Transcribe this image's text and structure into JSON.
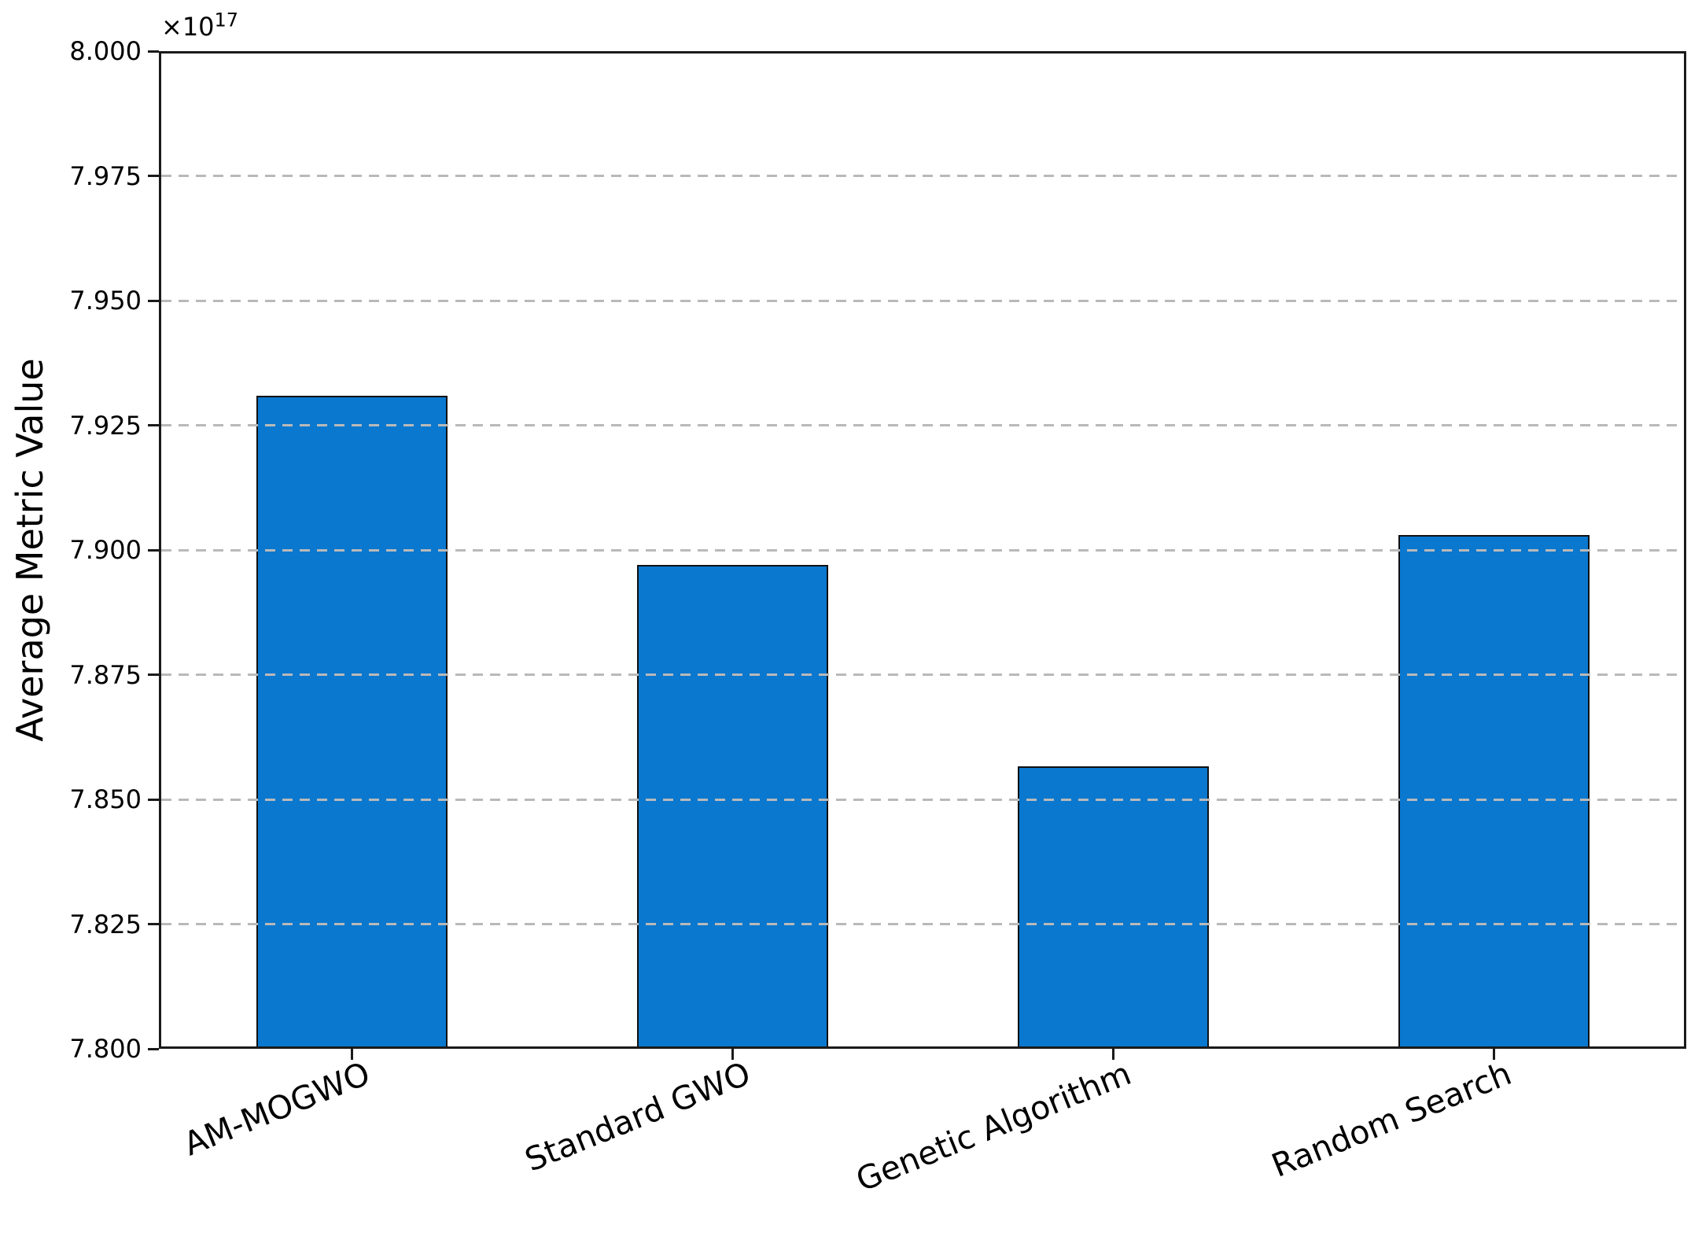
{
  "figure": {
    "offset_base": "×10",
    "offset_exponent": "17"
  },
  "chart_data": {
    "type": "bar",
    "title": "",
    "xlabel": "",
    "ylabel": "Average Metric Value",
    "categories": [
      "AM-MOGWO",
      "Standard GWO",
      "Genetic Algorithm",
      "Random Search"
    ],
    "values": [
      7.931e+17,
      7.897e+17,
      7.8565e+17,
      7.903e+17
    ],
    "values_e17": [
      7.931,
      7.897,
      7.8565,
      7.903
    ],
    "scale_label": "×10¹⁷",
    "ylim_e17": [
      7.8,
      8.0
    ],
    "yticks_e17": [
      7.8,
      7.825,
      7.85,
      7.875,
      7.9,
      7.925,
      7.95,
      7.975,
      8.0
    ],
    "ytick_labels": [
      "7.800",
      "7.825",
      "7.850",
      "7.875",
      "7.900",
      "7.925",
      "7.950",
      "7.975",
      "8.000"
    ],
    "grid": true,
    "grid_axis": "y",
    "grid_style": "dashed",
    "grid_above_bars": true,
    "legend": "none",
    "bar_color": "#0a78cf",
    "bar_edge_color": "#111111",
    "grid_color": "#b9b9b9",
    "x_tick_rotation_deg": 22
  }
}
